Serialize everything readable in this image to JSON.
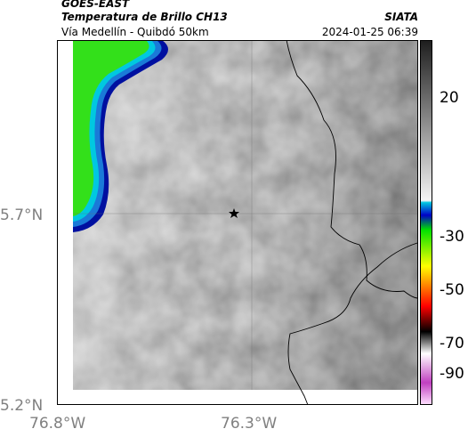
{
  "header": {
    "title_line1": "GOES-EAST",
    "title_line2": "Temperatura de Brillo CH13",
    "subtitle": "Vía Medellín - Quibdó 50km",
    "organization": "SIATA",
    "datetime": "2024-01-25 06:39"
  },
  "axes": {
    "latitude_ticks": [
      "5.7°N",
      "5.2°N"
    ],
    "longitude_ticks": [
      "76.8°W",
      "76.3°W"
    ]
  },
  "colorbar": {
    "tick_labels": [
      "20",
      "-30",
      "-50",
      "-70",
      "-90"
    ],
    "colors": {
      "warm_gray_light": "#f4f4f4",
      "warm_gray_dark": "#1e1e1e",
      "cyan": "#00c8e0",
      "blue": "#0000c8",
      "green": "#00e000",
      "yellow": "#ffff00",
      "red": "#ff0000",
      "black": "#000000",
      "magenta": "#c040c0"
    }
  },
  "map": {
    "location_marker": "star-icon",
    "cold_cloud_color": "#33e01a"
  }
}
